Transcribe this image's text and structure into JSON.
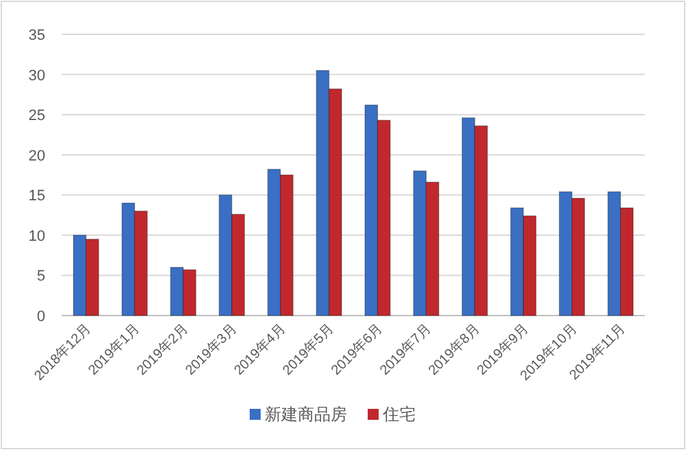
{
  "chart_data": {
    "type": "bar",
    "categories": [
      "2018年12月",
      "2019年1月",
      "2019年2月",
      "2019年3月",
      "2019年4月",
      "2019年5月",
      "2019年6月",
      "2019年7月",
      "2019年8月",
      "2019年9月",
      "2019年10月",
      "2019年11月"
    ],
    "series": [
      {
        "name": "新建商品房",
        "color": "#3a6fc4",
        "values": [
          10.0,
          14.0,
          6.0,
          15.0,
          18.2,
          30.5,
          26.2,
          18.0,
          24.6,
          13.4,
          15.4,
          15.4
        ]
      },
      {
        "name": "住宅",
        "color": "#c0282d",
        "values": [
          9.5,
          13.0,
          5.7,
          12.6,
          17.5,
          28.2,
          24.3,
          16.6,
          23.6,
          12.4,
          14.6,
          13.4
        ]
      }
    ],
    "ylim": [
      0,
      35
    ],
    "yticks": [
      0,
      5,
      10,
      15,
      20,
      25,
      30,
      35
    ],
    "grid": "y",
    "legend": "bottom"
  }
}
